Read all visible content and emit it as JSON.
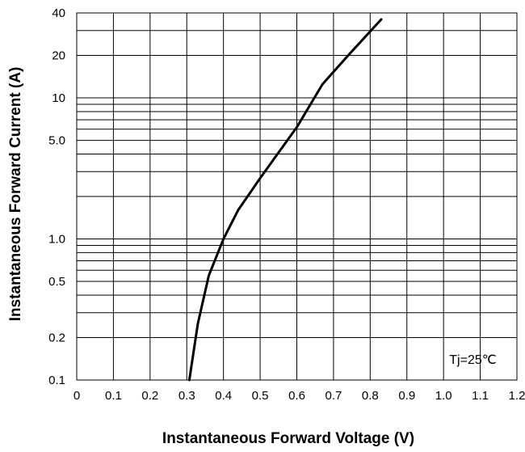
{
  "chart_data": {
    "type": "line",
    "title": "",
    "xlabel": "Instantaneous Forward Voltage (V)",
    "ylabel": "Instantaneous Forward Current (A)",
    "xlim": [
      0,
      1.2
    ],
    "ylim": [
      0.1,
      40
    ],
    "yscale": "log",
    "grid": true,
    "x_ticks": [
      "0",
      "0.1",
      "0.2",
      "0.3",
      "0.4",
      "0.5",
      "0.6",
      "0.7",
      "0.8",
      "0.9",
      "1.0",
      "1.1",
      "1.2"
    ],
    "y_ticks": [
      {
        "value": 0.1,
        "label": "0.1"
      },
      {
        "value": 0.2,
        "label": "0.2"
      },
      {
        "value": 0.5,
        "label": "0.5"
      },
      {
        "value": 1,
        "label": "1.0"
      },
      {
        "value": 5,
        "label": "5.0"
      },
      {
        "value": 10,
        "label": "10"
      },
      {
        "value": 20,
        "label": "20"
      },
      {
        "value": 40,
        "label": "40"
      }
    ],
    "y_grid_values": [
      0.1,
      0.2,
      0.3,
      0.4,
      0.5,
      0.6,
      0.7,
      0.8,
      0.9,
      1,
      2,
      3,
      4,
      5,
      6,
      7,
      8,
      9,
      10,
      20,
      30,
      40
    ],
    "series": [
      {
        "color": "#000000",
        "points": [
          [
            0.307,
            0.1
          ],
          [
            0.33,
            0.25
          ],
          [
            0.36,
            0.55
          ],
          [
            0.4,
            1.0
          ],
          [
            0.44,
            1.6
          ],
          [
            0.5,
            2.7
          ],
          [
            0.6,
            6.2
          ],
          [
            0.67,
            12.5
          ],
          [
            0.74,
            20
          ],
          [
            0.83,
            36
          ]
        ]
      }
    ],
    "annotations": [
      {
        "text": "Tj=25℃",
        "x": 1.08,
        "y": 0.13
      }
    ]
  }
}
